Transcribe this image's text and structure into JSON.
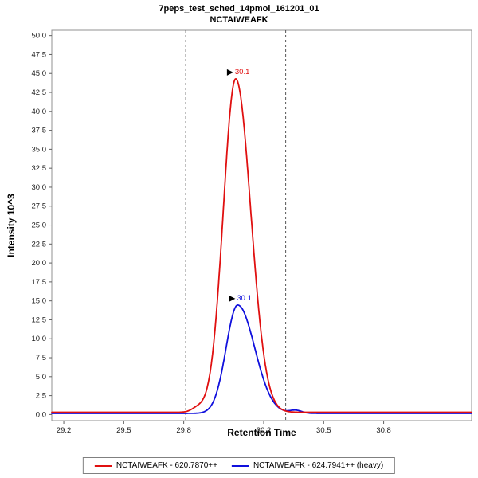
{
  "chart_data": {
    "type": "line",
    "title": "7peps_test_sched_14pmol_161201_01",
    "subtitle": "NCTAIWEAFK",
    "xlabel": "Retention Time",
    "ylabel": "Intensity 10^3",
    "xlim": [
      29.14,
      31.24
    ],
    "ylim": [
      -0.8,
      50.7
    ],
    "x_ticks": [
      29.2,
      29.5,
      29.8,
      30.2,
      30.5,
      30.8
    ],
    "y_ticks": [
      0.0,
      2.5,
      5.0,
      7.5,
      10.0,
      12.5,
      15.0,
      17.5,
      20.0,
      22.5,
      25.0,
      27.5,
      30.0,
      32.5,
      35.0,
      37.5,
      40.0,
      42.5,
      45.0,
      47.5,
      50.0
    ],
    "integration_boundaries": [
      29.81,
      30.31
    ],
    "series": [
      {
        "name": "NCTAIWEAFK - 620.7870++",
        "color": "#e01010",
        "baseline": 0.3,
        "peak": {
          "center": 30.06,
          "height": 44.0,
          "sigma_left": 0.062,
          "sigma_right": 0.075
        },
        "bumps": [
          {
            "center": 29.87,
            "height": 0.55,
            "sigma": 0.03
          }
        ],
        "annotation": {
          "label": "30.1",
          "x": 30.06,
          "y": 44.3
        }
      },
      {
        "name": "NCTAIWEAFK - 624.7941++ (heavy)",
        "color": "#1010dd",
        "baseline": 0.15,
        "peak": {
          "center": 30.07,
          "height": 14.3,
          "sigma_left": 0.058,
          "sigma_right": 0.085
        },
        "bumps": [
          {
            "center": 30.36,
            "height": 0.4,
            "sigma": 0.03
          }
        ],
        "annotation": {
          "label": "30.1",
          "x": 30.07,
          "y": 14.45
        }
      }
    ],
    "legend_position": "bottom"
  }
}
